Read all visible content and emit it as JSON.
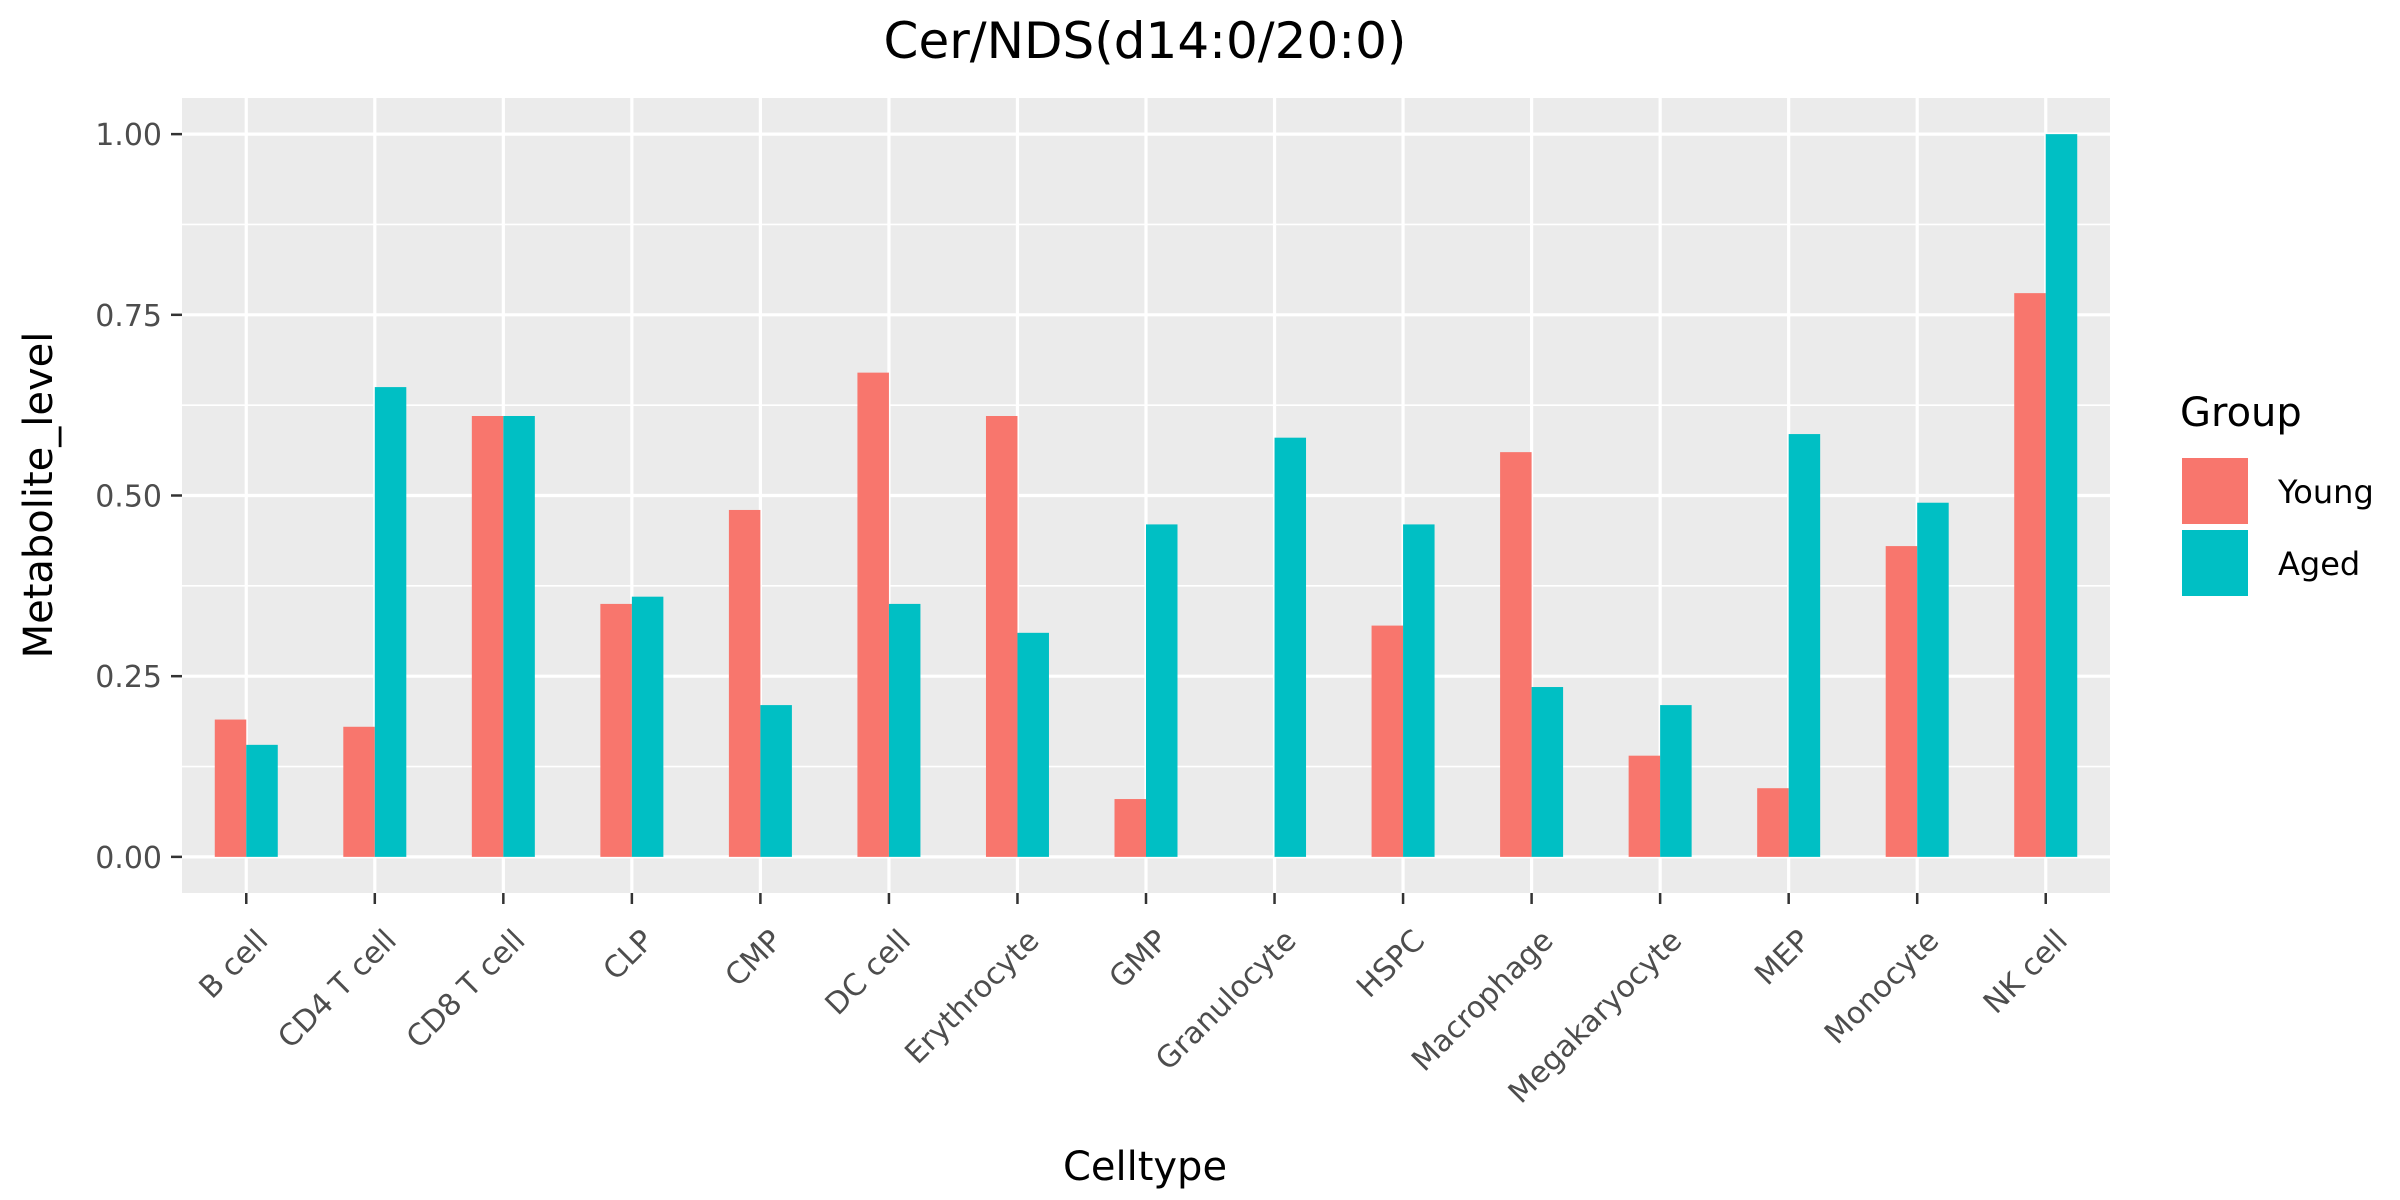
{
  "chart_data": {
    "type": "bar",
    "title": "Cer/NDS(d14:0/20:0)",
    "xlabel": "Celltype",
    "ylabel": "Metabolite_level",
    "ylim": [
      -0.05,
      1.05
    ],
    "yticks": [
      "0.00",
      "0.25",
      "0.50",
      "0.75",
      "1.00"
    ],
    "ytick_values": [
      0,
      0.25,
      0.5,
      0.75,
      1.0
    ],
    "grid": true,
    "legend": {
      "title": "Group",
      "position": "right"
    },
    "categories": [
      "B cell",
      "CD4 T cell",
      "CD8 T cell",
      "CLP",
      "CMP",
      "DC cell",
      "Erythrocyte",
      "GMP",
      "Granulocyte",
      "HSPC",
      "Macrophage",
      "Megakaryocyte",
      "MEP",
      "Monocyte",
      "NK cell"
    ],
    "series": [
      {
        "name": "Young",
        "color": "#F8766D",
        "values": [
          0.19,
          0.18,
          0.61,
          0.35,
          0.48,
          0.67,
          0.61,
          0.08,
          0.0,
          0.32,
          0.56,
          0.14,
          0.095,
          0.43,
          0.78
        ]
      },
      {
        "name": "Aged",
        "color": "#00BFC4",
        "values": [
          0.155,
          0.65,
          0.61,
          0.36,
          0.21,
          0.35,
          0.31,
          0.46,
          0.58,
          0.46,
          0.235,
          0.21,
          0.585,
          0.49,
          1.0
        ]
      }
    ],
    "panel_background": "#EBEBEB",
    "grid_color": "#FFFFFF"
  }
}
